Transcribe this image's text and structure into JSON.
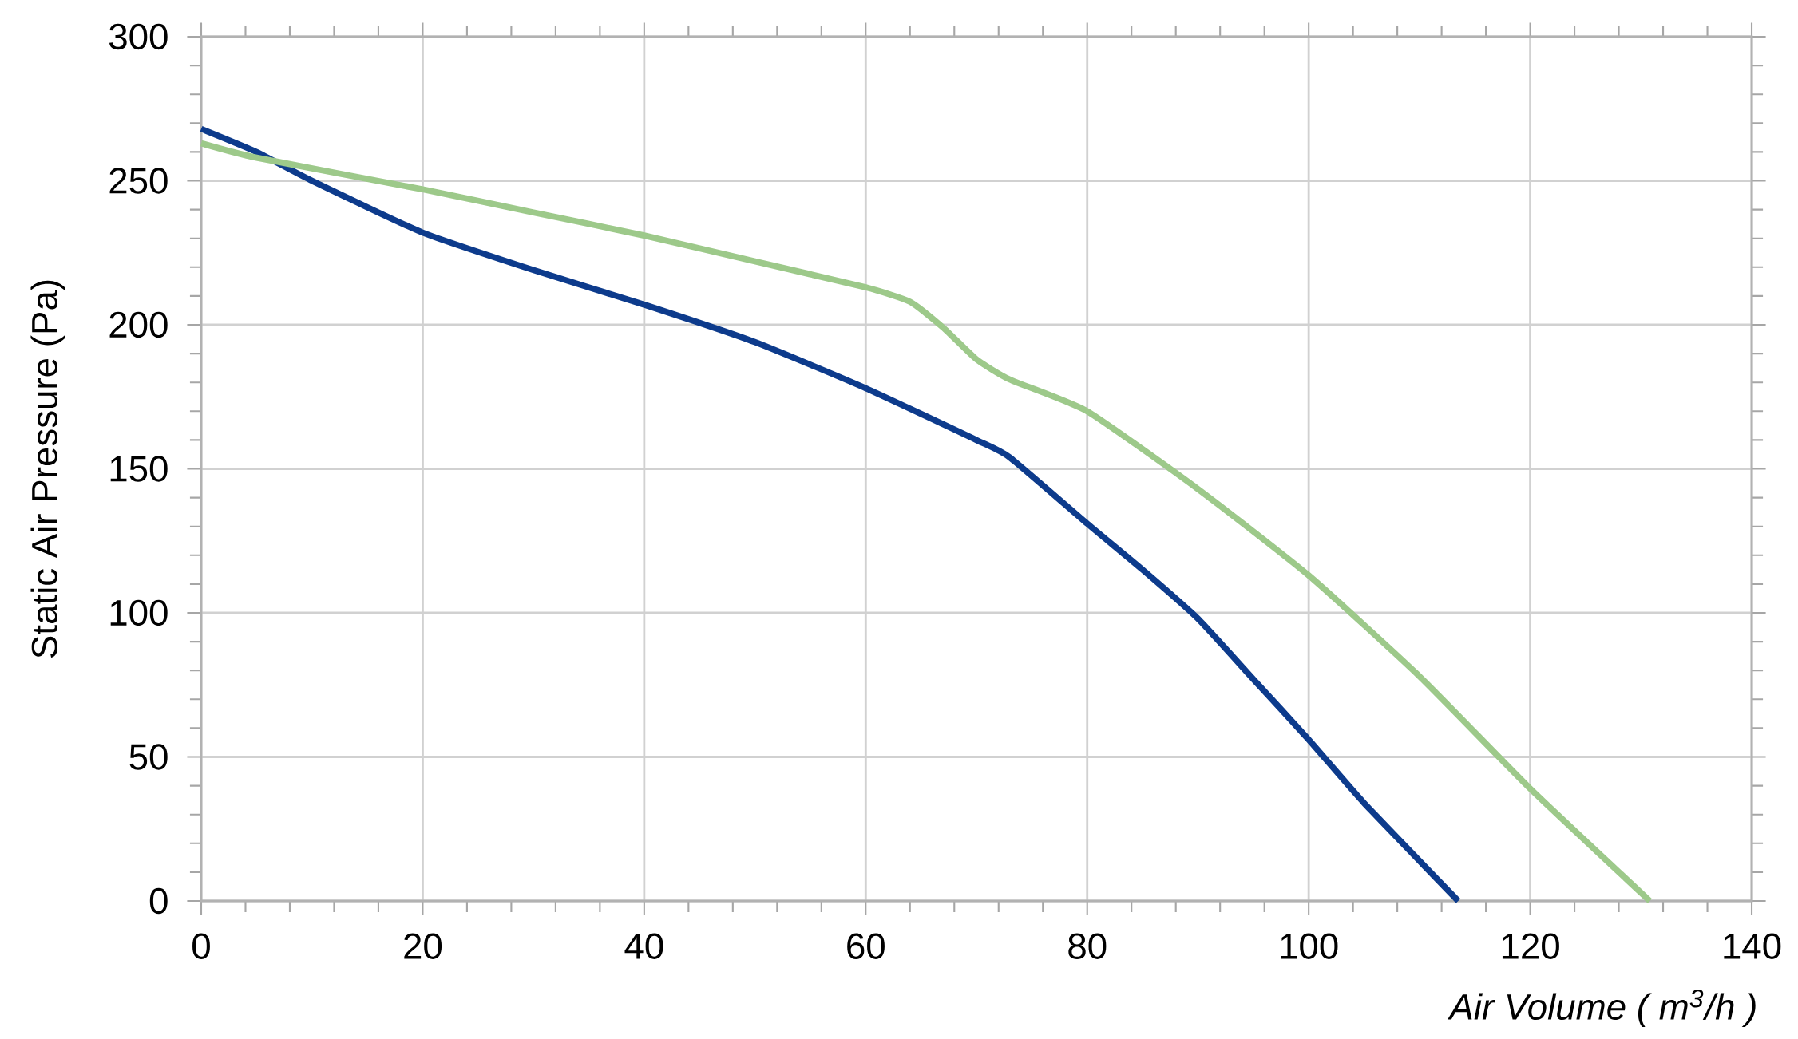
{
  "chart_data": {
    "type": "line",
    "xlabel": "Air Volume ( m$^{3}$/h )",
    "ylabel": "Static Air Pressure  (Pa)",
    "xlim": [
      0,
      140
    ],
    "ylim": [
      0,
      300
    ],
    "xticks": [
      0,
      20,
      40,
      60,
      80,
      100,
      120,
      140
    ],
    "yticks": [
      0,
      50,
      100,
      150,
      200,
      250,
      300
    ],
    "grid": true,
    "marker": "none",
    "line_style": "solid",
    "series": [
      {
        "color": "#0d3b8c",
        "x": [
          0,
          5,
          10,
          20,
          30,
          40,
          50,
          60,
          70,
          73,
          80,
          85,
          90,
          95,
          100,
          105,
          113.5
        ],
        "values": [
          268,
          260,
          250,
          232,
          219,
          207,
          194,
          178,
          160,
          154,
          131,
          115,
          98,
          77,
          56,
          34,
          0
        ]
      },
      {
        "color": "#9dc98a",
        "x": [
          0,
          5,
          20,
          30,
          40,
          50,
          60,
          64,
          67,
          70,
          73,
          80,
          90,
          100,
          110,
          120,
          130.8
        ],
        "values": [
          263,
          258,
          247,
          239,
          231,
          222,
          213,
          208,
          199,
          188,
          181,
          170,
          143,
          113,
          78,
          39,
          0
        ]
      }
    ]
  }
}
